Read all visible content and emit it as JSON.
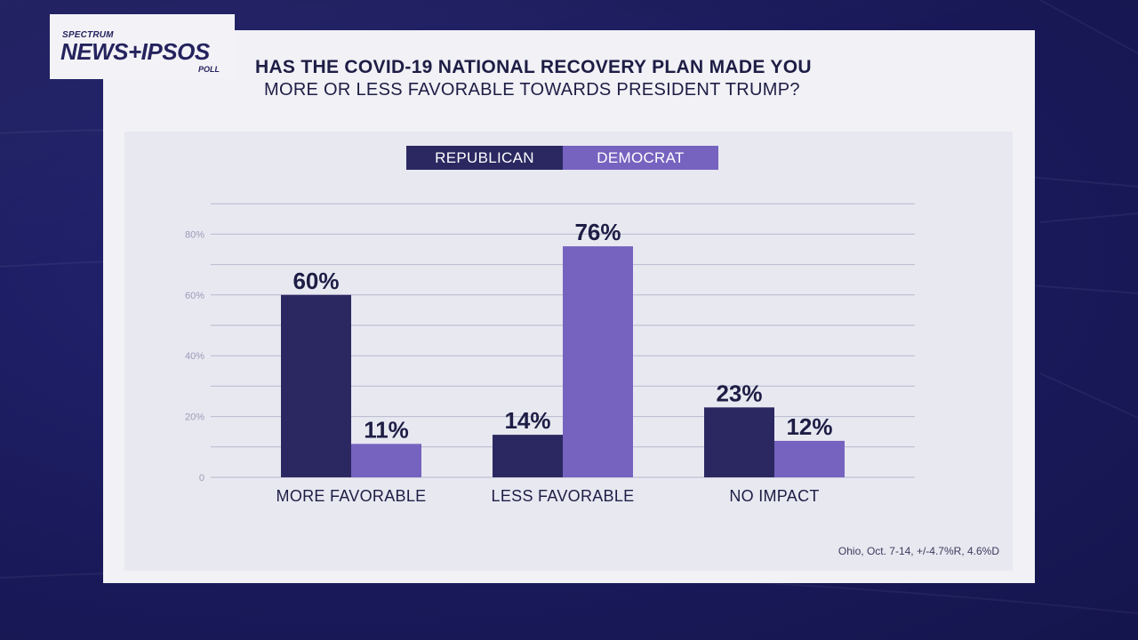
{
  "header": {
    "brand_top": "SPECTRUM",
    "brand_main": "NEWS+IPSOS",
    "brand_bottom": "POLL",
    "title": "HAS THE COVID-19 NATIONAL RECOVERY PLAN MADE YOU",
    "subtitle": "MORE OR LESS FAVORABLE TOWARDS PRESIDENT TRUMP?"
  },
  "footnote": "Ohio, Oct. 7-14, +/-4.7%R, 4.6%D",
  "colors": {
    "republican": "#2b2861",
    "democrat": "#7663bf",
    "grid": "#b9b8cf",
    "tick": "#9c9bb8",
    "label": "#1e1d45"
  },
  "chart_data": {
    "type": "bar",
    "title": "HAS THE COVID-19 NATIONAL RECOVERY PLAN MADE YOU MORE OR LESS FAVORABLE TOWARDS PRESIDENT TRUMP?",
    "categories": [
      "MORE FAVORABLE",
      "LESS FAVORABLE",
      "NO IMPACT"
    ],
    "series": [
      {
        "name": "REPUBLICAN",
        "values": [
          60,
          14,
          23
        ],
        "labels": [
          "60%",
          "14%",
          "23%"
        ]
      },
      {
        "name": "DEMOCRAT",
        "values": [
          11,
          76,
          12
        ],
        "labels": [
          "11%",
          "76%",
          "12%"
        ]
      }
    ],
    "yticks": [
      0,
      20,
      40,
      60,
      80
    ],
    "ytick_labels": [
      "0",
      "20%",
      "40%",
      "60%",
      "80%"
    ],
    "ylim": [
      0,
      90
    ],
    "grid": true,
    "legend": "top-center",
    "xlabel": "",
    "ylabel": ""
  }
}
